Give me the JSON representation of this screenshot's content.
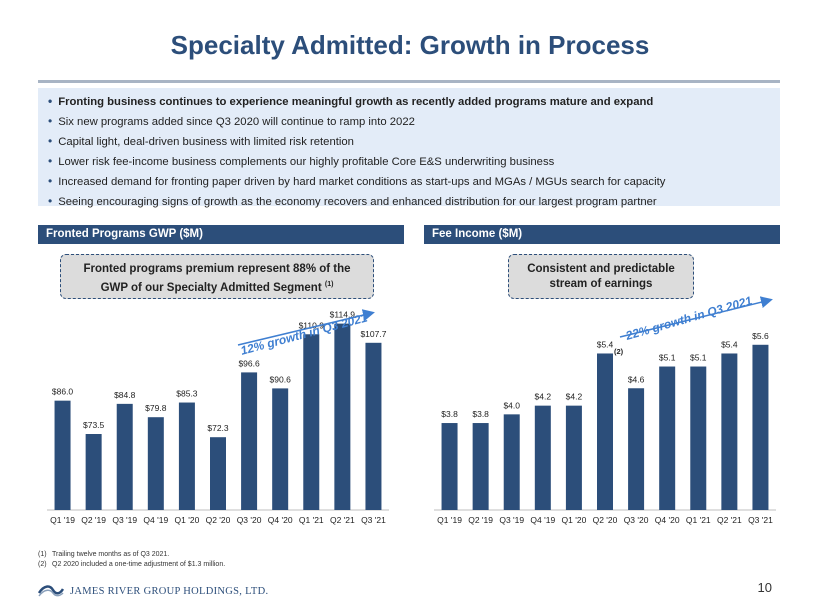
{
  "title": "Specialty Admitted: Growth in Process",
  "bullets": [
    "Fronting business continues to experience meaningful growth as recently added programs mature and expand",
    "Six new programs added since Q3 2020 will continue to ramp into 2022",
    "Capital light, deal-driven business with limited risk retention",
    "Lower risk fee-income business complements our highly profitable Core E&S underwriting business",
    "Increased demand for fronting paper driven by hard market conditions as start-ups and MGAs / MGUs search for capacity",
    "Seeing encouraging signs of growth as the economy recovers and enhanced distribution for our largest program partner"
  ],
  "panels": {
    "left": {
      "header": "Fronted Programs GWP ($M)",
      "callout_line1": "Fronted programs premium represent 88% of the",
      "callout_line2": "GWP of our Specialty Admitted Segment",
      "callout_sup": "(1)",
      "growth_label": "12% growth in Q3 2021"
    },
    "right": {
      "header": "Fee Income ($M)",
      "callout_line1": "Consistent and predictable",
      "callout_line2": "stream of earnings",
      "growth_label": "22% growth in Q3 2021",
      "q2_2020_note": "(2)"
    }
  },
  "chart_data": [
    {
      "type": "bar",
      "title": "Fronted Programs GWP ($M)",
      "categories": [
        "Q1 '19",
        "Q2 '19",
        "Q3 '19",
        "Q4 '19",
        "Q1 '20",
        "Q2 '20",
        "Q3 '20",
        "Q4 '20",
        "Q1 '21",
        "Q2 '21",
        "Q3 '21"
      ],
      "values": [
        86.0,
        73.5,
        84.8,
        79.8,
        85.3,
        72.3,
        96.6,
        90.6,
        110.9,
        114.9,
        107.7
      ],
      "data_labels": [
        "$86.0",
        "$73.5",
        "$84.8",
        "$79.8",
        "$85.3",
        "$72.3",
        "$96.6",
        "$90.6",
        "$110.9",
        "$114.9",
        "$107.7"
      ],
      "ylim": [
        45,
        120
      ],
      "color": "#2c4e7a"
    },
    {
      "type": "bar",
      "title": "Fee Income ($M)",
      "categories": [
        "Q1 '19",
        "Q2 '19",
        "Q3 '19",
        "Q4 '19",
        "Q1 '20",
        "Q2 '20",
        "Q3 '20",
        "Q4 '20",
        "Q1 '21",
        "Q2 '21",
        "Q3 '21"
      ],
      "values": [
        3.8,
        3.8,
        4.0,
        4.2,
        4.2,
        5.4,
        4.6,
        5.1,
        5.1,
        5.4,
        5.6
      ],
      "data_labels": [
        "$3.8",
        "$3.8",
        "$4.0",
        "$4.2",
        "$4.2",
        "$5.4",
        "$4.6",
        "$5.1",
        "$5.1",
        "$5.4",
        "$5.6"
      ],
      "ylim": [
        1.8,
        6.4
      ],
      "color": "#2c4e7a"
    }
  ],
  "footnotes": [
    {
      "num": "(1)",
      "text": "Trailing twelve months as of Q3 2021."
    },
    {
      "num": "(2)",
      "text": "Q2 2020 included a one-time adjustment of $1.3 million."
    }
  ],
  "company": "JAMES RIVER GROUP HOLDINGS, LTD.",
  "page_number": "10",
  "colors": {
    "navy": "#2c4e7a",
    "arrow": "#3f7fd1",
    "bullet_bg": "#e3ecf8"
  }
}
